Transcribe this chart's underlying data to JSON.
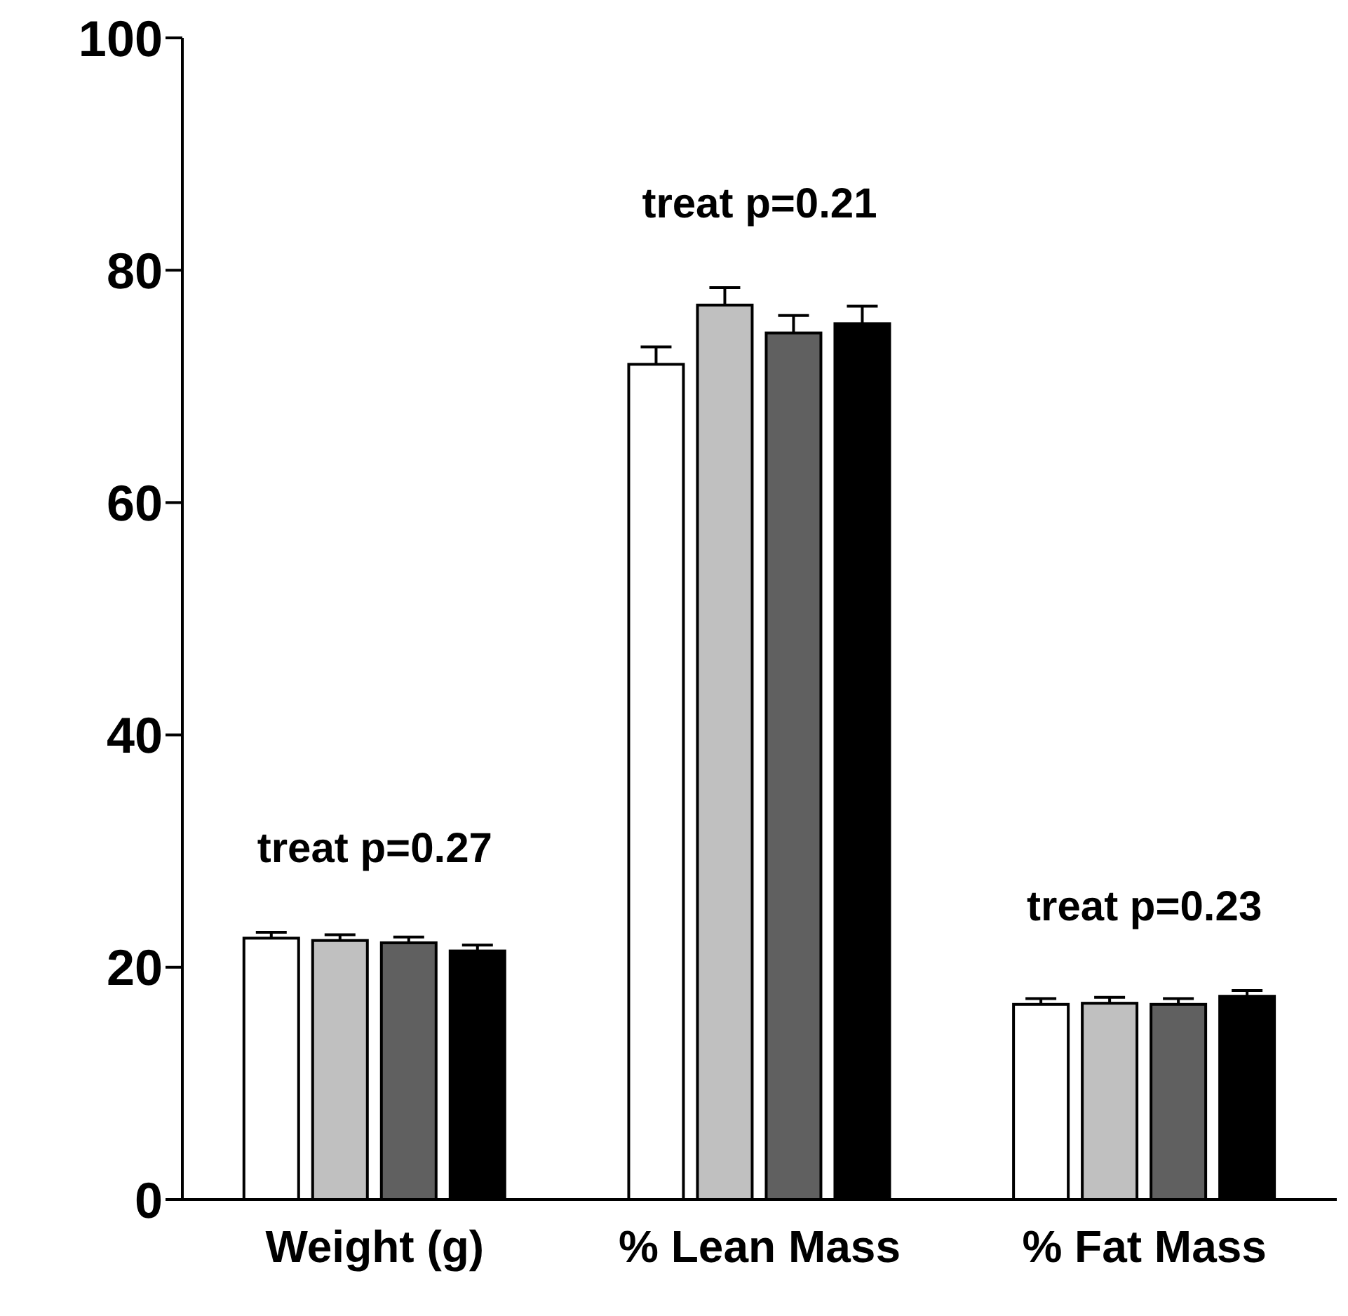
{
  "chart_data": {
    "type": "bar",
    "categories": [
      "Weight (g)",
      "% Lean Mass",
      "% Fat Mass"
    ],
    "series": [
      {
        "color": "#ffffff",
        "values": [
          22.5,
          71.9,
          16.8
        ],
        "errors": [
          [
            22.5,
            23.0
          ],
          [
            71.9,
            73.4
          ],
          [
            16.8,
            17.3
          ]
        ]
      },
      {
        "color": "#c0c0c0",
        "values": [
          22.3,
          77.0,
          16.9
        ],
        "errors": [
          [
            22.3,
            22.8
          ],
          [
            77.0,
            78.5
          ],
          [
            16.9,
            17.4
          ]
        ]
      },
      {
        "color": "#606060",
        "values": [
          22.1,
          74.6,
          16.8
        ],
        "errors": [
          [
            22.1,
            22.6
          ],
          [
            74.6,
            76.1
          ],
          [
            16.8,
            17.3
          ]
        ]
      },
      {
        "color": "#000000",
        "values": [
          21.4,
          75.4,
          17.5
        ],
        "errors": [
          [
            21.4,
            21.9
          ],
          [
            75.4,
            76.9
          ],
          [
            17.5,
            18.0
          ]
        ]
      }
    ],
    "ylim": [
      0,
      100
    ],
    "yticks": [
      0,
      20,
      40,
      60,
      80,
      100
    ],
    "annotations": [
      "treat p=0.27",
      "treat p=0.21",
      "treat p=0.23"
    ]
  }
}
